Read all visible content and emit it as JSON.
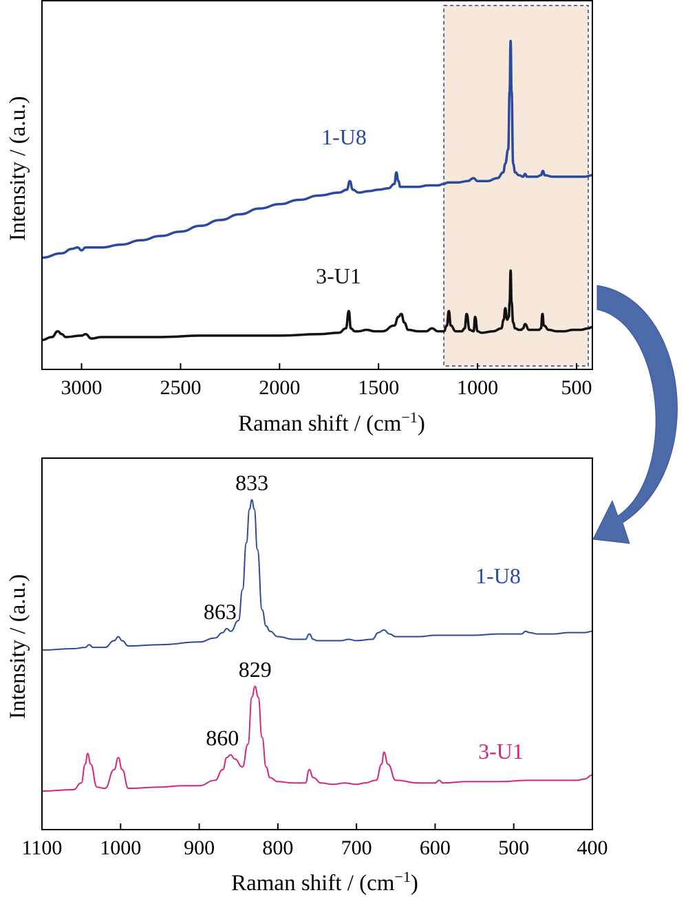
{
  "chart_data": [
    {
      "type": "line",
      "xlabel": "Raman shift / (cm",
      "xlabel_sup": "−1",
      "xlabel_end": ")",
      "ylabel": "Intensity / (a.u.)",
      "xlim": [
        3200,
        420
      ],
      "x_reversed": true,
      "x_ticks": [
        "3000",
        "2500",
        "2000",
        "1500",
        "1000",
        "500"
      ],
      "highlight_region": [
        1170,
        420
      ],
      "colors": {
        "1-U8": "#2a4a9e",
        "3-U1": "#111111",
        "highlight": "#f7e8dc"
      },
      "series": [
        {
          "name": "1-U8",
          "x": [
            3200,
            3100,
            3050,
            3020,
            3000,
            2980,
            2900,
            2800,
            2700,
            2600,
            2500,
            2400,
            2300,
            2200,
            2100,
            2000,
            1900,
            1800,
            1700,
            1660,
            1645,
            1630,
            1600,
            1550,
            1500,
            1450,
            1420,
            1410,
            1400,
            1390,
            1350,
            1300,
            1250,
            1200,
            1170,
            1150,
            1100,
            1050,
            1020,
            1000,
            950,
            900,
            870,
            860,
            845,
            838,
            833,
            828,
            820,
            810,
            790,
            770,
            760,
            750,
            700,
            680,
            670,
            660,
            620,
            580,
            540,
            500,
            460,
            420
          ],
          "y": [
            0.05,
            0.08,
            0.11,
            0.12,
            0.1,
            0.12,
            0.12,
            0.14,
            0.17,
            0.2,
            0.23,
            0.27,
            0.31,
            0.35,
            0.39,
            0.42,
            0.45,
            0.48,
            0.5,
            0.52,
            0.58,
            0.52,
            0.5,
            0.51,
            0.52,
            0.53,
            0.56,
            0.64,
            0.58,
            0.54,
            0.54,
            0.54,
            0.55,
            0.55,
            0.56,
            0.57,
            0.57,
            0.58,
            0.6,
            0.58,
            0.58,
            0.6,
            0.64,
            0.7,
            0.8,
            1.2,
            1.55,
            1.2,
            0.7,
            0.64,
            0.62,
            0.61,
            0.63,
            0.61,
            0.61,
            0.62,
            0.65,
            0.62,
            0.61,
            0.61,
            0.61,
            0.61,
            0.61,
            0.62
          ]
        },
        {
          "name": "3-U1",
          "x": [
            3200,
            3150,
            3120,
            3100,
            3080,
            3000,
            2980,
            2950,
            2900,
            2800,
            2600,
            2400,
            2200,
            2000,
            1800,
            1700,
            1665,
            1650,
            1640,
            1620,
            1600,
            1560,
            1520,
            1480,
            1420,
            1400,
            1385,
            1370,
            1350,
            1300,
            1260,
            1230,
            1200,
            1170,
            1155,
            1145,
            1135,
            1110,
            1080,
            1065,
            1055,
            1040,
            1020,
            1012,
            1000,
            980,
            920,
            880,
            868,
            860,
            850,
            842,
            838,
            833,
            828,
            820,
            810,
            790,
            780,
            770,
            760,
            740,
            710,
            690,
            680,
            672,
            665,
            640,
            600,
            560,
            520,
            480,
            440,
            420
          ],
          "y": [
            -0.02,
            0.0,
            0.04,
            0.02,
            0.0,
            0.01,
            0.02,
            -0.01,
            0.0,
            0.0,
            0.0,
            0.01,
            0.01,
            0.01,
            0.02,
            0.03,
            0.06,
            0.18,
            0.06,
            0.04,
            0.04,
            0.05,
            0.04,
            0.04,
            0.08,
            0.14,
            0.16,
            0.1,
            0.05,
            0.04,
            0.04,
            0.06,
            0.04,
            0.04,
            0.08,
            0.18,
            0.08,
            0.04,
            0.04,
            0.06,
            0.16,
            0.05,
            0.04,
            0.14,
            0.04,
            0.03,
            0.04,
            0.06,
            0.12,
            0.2,
            0.12,
            0.14,
            0.24,
            0.46,
            0.24,
            0.1,
            0.06,
            0.05,
            0.05,
            0.06,
            0.09,
            0.05,
            0.05,
            0.05,
            0.06,
            0.16,
            0.08,
            0.05,
            0.04,
            0.04,
            0.05,
            0.05,
            0.06,
            0.07
          ]
        }
      ],
      "series_labels": {
        "top": "1-U8",
        "bottom": "3-U1"
      },
      "legend": "none",
      "grid": false
    },
    {
      "type": "line",
      "xlabel": "Raman shift / (cm",
      "xlabel_sup": "−1",
      "xlabel_end": ")",
      "ylabel": "Intensity / (a.u.)",
      "xlim": [
        1100,
        400
      ],
      "x_reversed": true,
      "x_ticks": [
        "1100",
        "1000",
        "900",
        "800",
        "700",
        "600",
        "500",
        "400"
      ],
      "colors": {
        "1-U8": "#2a4a9e",
        "3-U1": "#d6257a"
      },
      "series": [
        {
          "name": "1-U8",
          "x": [
            1100,
            1060,
            1045,
            1040,
            1035,
            1020,
            1008,
            1003,
            998,
            990,
            950,
            900,
            880,
            870,
            865,
            860,
            850,
            845,
            840,
            836,
            833,
            830,
            826,
            820,
            815,
            810,
            800,
            780,
            765,
            760,
            755,
            750,
            720,
            710,
            700,
            680,
            672,
            665,
            658,
            650,
            620,
            600,
            580,
            550,
            520,
            490,
            485,
            480,
            470,
            450,
            430,
            410,
            400
          ],
          "y": [
            0.0,
            0.01,
            0.02,
            0.04,
            0.02,
            0.02,
            0.07,
            0.1,
            0.07,
            0.03,
            0.04,
            0.06,
            0.09,
            0.13,
            0.16,
            0.14,
            0.22,
            0.45,
            0.8,
            1.05,
            1.12,
            1.05,
            0.75,
            0.3,
            0.18,
            0.14,
            0.1,
            0.08,
            0.08,
            0.12,
            0.08,
            0.07,
            0.07,
            0.08,
            0.07,
            0.08,
            0.13,
            0.15,
            0.12,
            0.1,
            0.1,
            0.11,
            0.11,
            0.11,
            0.12,
            0.12,
            0.14,
            0.13,
            0.12,
            0.12,
            0.13,
            0.13,
            0.14
          ]
        },
        {
          "name": "3-U1",
          "x": [
            1100,
            1060,
            1050,
            1045,
            1042,
            1038,
            1030,
            1020,
            1008,
            1003,
            998,
            990,
            950,
            920,
            900,
            880,
            870,
            865,
            860,
            855,
            845,
            838,
            833,
            829,
            825,
            820,
            815,
            810,
            800,
            780,
            765,
            760,
            755,
            745,
            730,
            715,
            700,
            690,
            675,
            668,
            665,
            660,
            650,
            620,
            600,
            595,
            590,
            560,
            520,
            480,
            440,
            420,
            410,
            400
          ],
          "y": [
            0.0,
            0.01,
            0.06,
            0.2,
            0.28,
            0.2,
            0.03,
            0.02,
            0.16,
            0.25,
            0.16,
            0.02,
            0.03,
            0.04,
            0.04,
            0.08,
            0.16,
            0.25,
            0.27,
            0.24,
            0.18,
            0.35,
            0.7,
            0.78,
            0.7,
            0.4,
            0.18,
            0.1,
            0.07,
            0.06,
            0.06,
            0.16,
            0.1,
            0.06,
            0.05,
            0.06,
            0.05,
            0.06,
            0.08,
            0.2,
            0.29,
            0.2,
            0.08,
            0.06,
            0.06,
            0.08,
            0.06,
            0.07,
            0.07,
            0.08,
            0.08,
            0.08,
            0.09,
            0.12
          ]
        }
      ],
      "annotations": [
        {
          "text": "833",
          "x": 833,
          "series": "1-U8"
        },
        {
          "text": "863",
          "x": 863,
          "series": "1-U8"
        },
        {
          "text": "829",
          "x": 829,
          "series": "3-U1"
        },
        {
          "text": "860",
          "x": 860,
          "series": "3-U1"
        }
      ],
      "series_labels": {
        "top": "1-U8",
        "bottom": "3-U1"
      },
      "legend": "none",
      "grid": false
    }
  ],
  "arrow": {
    "color": "#4a6aaa",
    "icon": "curved-arrow-icon"
  }
}
